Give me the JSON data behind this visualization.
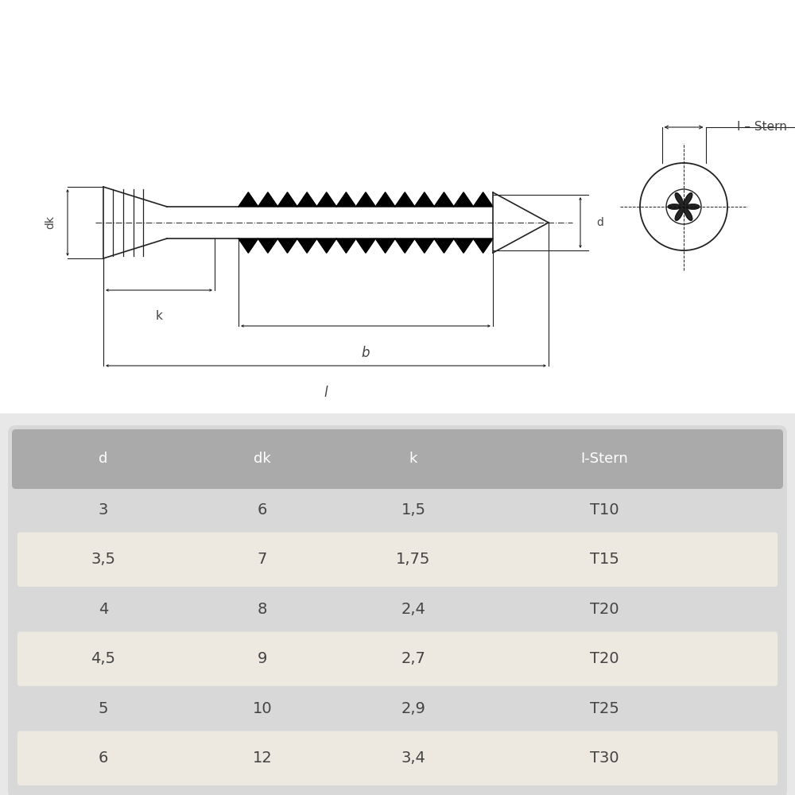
{
  "bg_color": "#e8e8e8",
  "drawing_bg": "#ffffff",
  "table_bg": "#d8d8d8",
  "row_alt_bg": "#ede8e0",
  "header_bg": "#aaaaaa",
  "line_color": "#222222",
  "text_color": "#444444",
  "table_headers": [
    "d",
    "dk",
    "k",
    "I-Stern"
  ],
  "table_rows": [
    [
      "3",
      "6",
      "1,5",
      "T10"
    ],
    [
      "3,5",
      "7",
      "1,75",
      "T15"
    ],
    [
      "4",
      "8",
      "2,4",
      "T20"
    ],
    [
      "4,5",
      "9",
      "2,7",
      "T20"
    ],
    [
      "5",
      "10",
      "2,9",
      "T25"
    ],
    [
      "6",
      "12",
      "3,4",
      "T30"
    ]
  ],
  "label_dk": "dk",
  "label_k": "k",
  "label_b": "b",
  "label_l": "l",
  "label_d": "d",
  "label_istern": "I – Stern"
}
